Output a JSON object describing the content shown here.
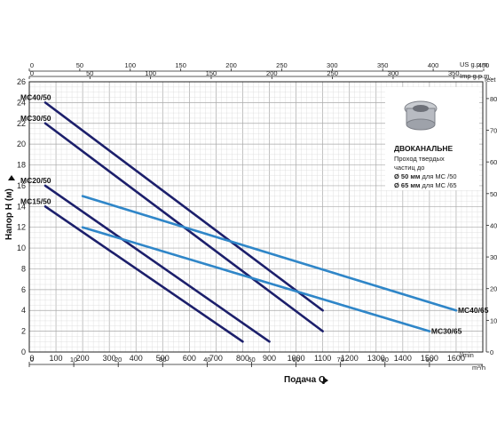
{
  "chart_data": {
    "type": "line",
    "ylabel": "Напор Н (м)",
    "xlabel": "Подача Q",
    "x_unit_bottom_main": "l/min",
    "x_unit_bottom_sub": "m³/h",
    "x_unit_top_main": "US g.p.m.",
    "x_unit_top_sub": "Imp g.p.m.",
    "y_unit_right": "feet",
    "xlim": [
      0,
      1700
    ],
    "ylim": [
      0,
      26
    ],
    "grid": true,
    "colors": {
      "dark": "#1c1f6b",
      "light": "#2f86c8",
      "axis": "#222222",
      "grid": "#bfbfbf"
    },
    "x_ticks_lmin": [
      "0",
      "100",
      "200",
      "300",
      "400",
      "500",
      "600",
      "700",
      "800",
      "900",
      "1000",
      "1100",
      "1200",
      "1300",
      "1400",
      "1500",
      "1600"
    ],
    "x_ticks_m3h": [
      "0",
      "10",
      "20",
      "30",
      "40",
      "50",
      "60",
      "70",
      "80",
      "90"
    ],
    "top_ticks_usgpm": [
      "0",
      "50",
      "100",
      "150",
      "200",
      "250",
      "300",
      "350",
      "400",
      "450"
    ],
    "top_ticks_impgpm": [
      "0",
      "50",
      "100",
      "150",
      "200",
      "250",
      "300",
      "350"
    ],
    "y_ticks_m": [
      "0",
      "2",
      "4",
      "6",
      "8",
      "10",
      "12",
      "14",
      "16",
      "18",
      "20",
      "22",
      "24",
      "26"
    ],
    "y_ticks_feet": [
      "0",
      "10",
      "20",
      "30",
      "40",
      "50",
      "60",
      "70",
      "80"
    ],
    "series": [
      {
        "name": "MC40/50",
        "color": "dark",
        "x": [
          60,
          1100
        ],
        "y": [
          24,
          4
        ]
      },
      {
        "name": "MC30/50",
        "color": "dark",
        "x": [
          60,
          1100
        ],
        "y": [
          22,
          2
        ]
      },
      {
        "name": "MC20/50",
        "color": "dark",
        "x": [
          60,
          900
        ],
        "y": [
          16,
          1
        ]
      },
      {
        "name": "MC15/50",
        "color": "dark",
        "x": [
          60,
          800
        ],
        "y": [
          14,
          1
        ]
      },
      {
        "name": "MC40/65",
        "color": "light",
        "x": [
          200,
          1600
        ],
        "y": [
          15,
          4
        ]
      },
      {
        "name": "MC30/65",
        "color": "light",
        "x": [
          200,
          1500
        ],
        "y": [
          12,
          2
        ]
      }
    ],
    "badge": {
      "title": "ДВОКАНАЛЬНЕ",
      "line1": "Проход твердых",
      "line2": "частиц до",
      "line3_bold": "Ø 50 мм",
      "line3_rest": " для МС /50",
      "line4_bold": "Ø 65 мм",
      "line4_rest": " для МС /65"
    }
  }
}
